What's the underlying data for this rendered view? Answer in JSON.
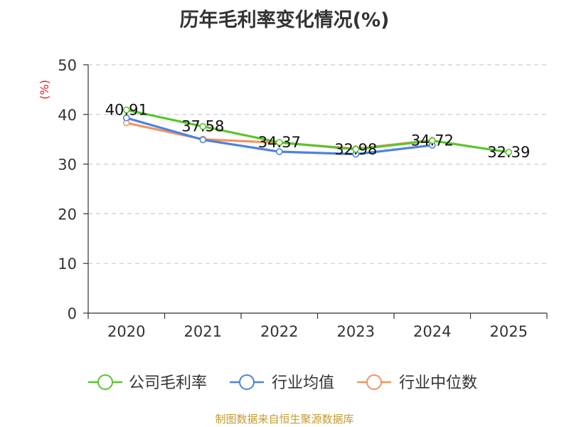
{
  "chart_data": {
    "type": "line",
    "title": "历年毛利率变化情况(%)",
    "ylabel": "(%)",
    "xlabel": "",
    "categories": [
      "2020",
      "2021",
      "2022",
      "2023",
      "2024",
      "2025"
    ],
    "ylim": [
      0,
      50
    ],
    "yticks": [
      0,
      10,
      20,
      30,
      40,
      50
    ],
    "grid": true,
    "legend_position": "bottom",
    "series": [
      {
        "name": "公司毛利率",
        "color": "#5cc42e",
        "values": [
          40.91,
          37.58,
          34.37,
          32.98,
          34.72,
          32.39
        ],
        "labels": [
          "40.91",
          "37.58",
          "34.37",
          "32.98",
          "34.72",
          "32.39"
        ]
      },
      {
        "name": "行业均值",
        "color": "#4f81e0",
        "values": [
          39.3,
          34.9,
          32.5,
          32.0,
          33.8,
          null
        ]
      },
      {
        "name": "行业中位数",
        "color": "#f29360",
        "values": [
          38.3,
          35.0,
          34.3,
          33.1,
          34.8,
          null
        ]
      }
    ]
  },
  "source": {
    "text": "制图数据来自恒生聚源数据库",
    "color": "#c59a2f"
  },
  "colors": {
    "axis": "#333333",
    "grid": "#cccccc",
    "ylabel": "#e02020"
  }
}
